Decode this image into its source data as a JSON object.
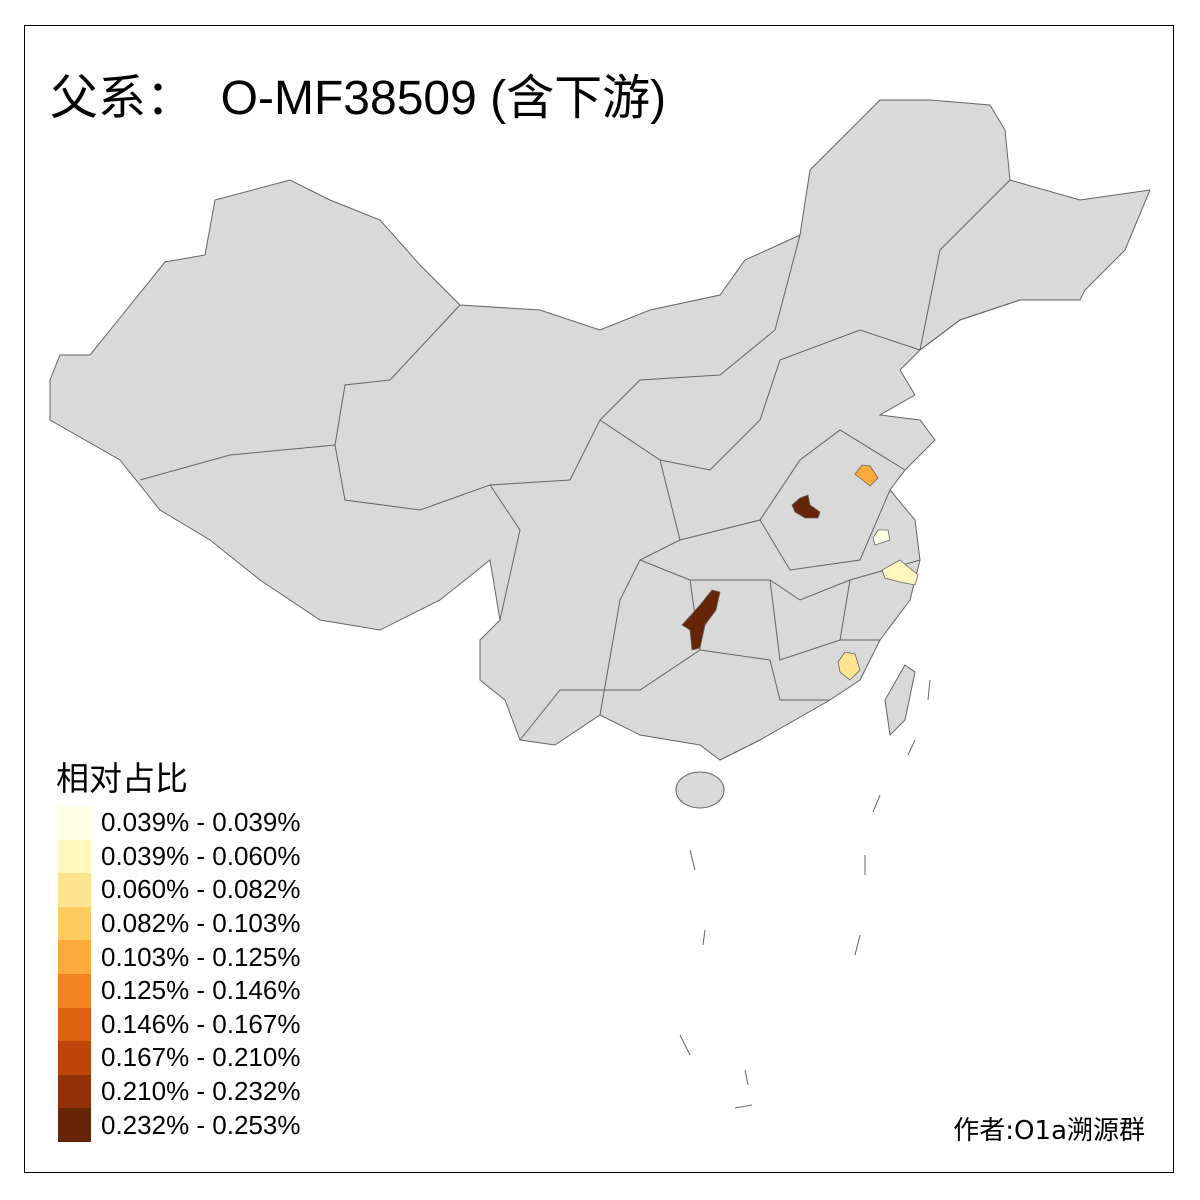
{
  "title": "父系：  O-MF38509 (含下游)",
  "legend": {
    "title": "相对占比",
    "items": [
      {
        "label": "0.039% - 0.039%",
        "color": "#FFFFE5"
      },
      {
        "label": "0.039% - 0.060%",
        "color": "#FFF7BC"
      },
      {
        "label": "0.060% - 0.082%",
        "color": "#FEE391"
      },
      {
        "label": "0.082% - 0.103%",
        "color": "#FECB5F"
      },
      {
        "label": "0.103% - 0.125%",
        "color": "#FDAA3A"
      },
      {
        "label": "0.125% - 0.146%",
        "color": "#F2841F"
      },
      {
        "label": "0.146% - 0.167%",
        "color": "#DD6110"
      },
      {
        "label": "0.167% - 0.210%",
        "color": "#BE450A"
      },
      {
        "label": "0.210% - 0.232%",
        "color": "#923008"
      },
      {
        "label": "0.232% - 0.253%",
        "color": "#662506"
      }
    ]
  },
  "map": {
    "base_color": "#D9D9D9",
    "border_color": "#646464",
    "highlighted_regions": [
      {
        "class": "0.232% - 0.253%",
        "color": "#662506"
      },
      {
        "class": "0.232% - 0.253%",
        "color": "#662506"
      },
      {
        "class": "0.103% - 0.125%",
        "color": "#FDAA3A"
      },
      {
        "class": "0.039% - 0.039%",
        "color": "#FFFFE5"
      },
      {
        "class": "0.039% - 0.060%",
        "color": "#FFF7BC"
      },
      {
        "class": "0.060% - 0.082%",
        "color": "#FEE391"
      }
    ]
  },
  "credit": "作者:O1a溯源群"
}
